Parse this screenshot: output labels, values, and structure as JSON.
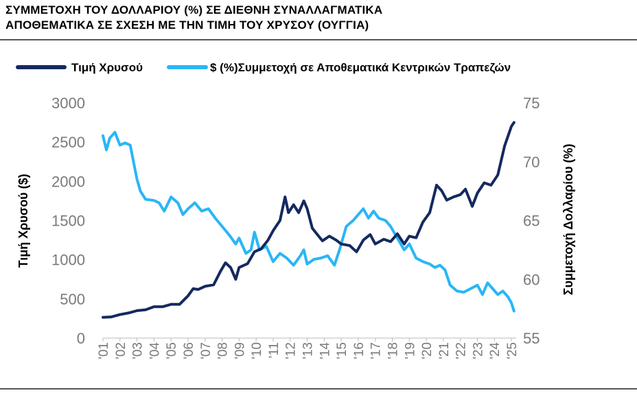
{
  "title": {
    "line1": "ΣΥΜΜΕΤΟΧΗ ΤΟΥ ΔΟΛΛΑΡΙΟΥ (%) ΣΕ ΔΙΕΘΝΗ ΣΥΝΑΛΛΑΓΜΑΤΙΚΑ",
    "line2": "ΑΠΟΘΕΜΑΤΙΚΑ ΣΕ ΣΧΕΣΗ ΜΕ ΤΗΝ ΤΙΜΗ ΤΟΥ ΧΡΥΣΟΥ (ΟΥΓΓΙΑ)"
  },
  "chart_data": {
    "type": "line",
    "ylabel": "Τιμή Χρυσού ($)",
    "y2label": "Συμμετοχή Δολλαρίου (%)",
    "ylim": [
      0,
      3000
    ],
    "y2lim": [
      55,
      75
    ],
    "yticks": [
      "0",
      "500",
      "1000",
      "1500",
      "2000",
      "2500",
      "3000"
    ],
    "y2ticks": [
      "55",
      "60",
      "65",
      "70",
      "75"
    ],
    "xticks": [
      "'01",
      "'02",
      "'03",
      "'04",
      "'05",
      "'06",
      "'07",
      "'08",
      "'09",
      "'10",
      "'11",
      "'12",
      "'13",
      "'14",
      "'15",
      "'16",
      "'17",
      "'18",
      "'19",
      "'20",
      "'21",
      "'22",
      "'23",
      "'24",
      "'25"
    ],
    "xlim": [
      2001,
      2025.2
    ],
    "legend_position": "top",
    "grid": false,
    "series": [
      {
        "name": "Τιμή Χρυσού",
        "color": "#14295f",
        "axis": "left",
        "x": [
          2001.0,
          2001.5,
          2002.0,
          2002.5,
          2003.0,
          2003.5,
          2004.0,
          2004.5,
          2005.0,
          2005.5,
          2006.0,
          2006.3,
          2006.6,
          2007.0,
          2007.5,
          2007.9,
          2008.2,
          2008.5,
          2008.8,
          2009.0,
          2009.5,
          2009.9,
          2010.3,
          2010.7,
          2011.0,
          2011.4,
          2011.7,
          2011.9,
          2012.2,
          2012.5,
          2012.8,
          2013.0,
          2013.3,
          2013.6,
          2013.9,
          2014.3,
          2014.7,
          2015.0,
          2015.5,
          2015.9,
          2016.3,
          2016.7,
          2017.0,
          2017.5,
          2017.9,
          2018.3,
          2018.7,
          2019.0,
          2019.4,
          2019.8,
          2020.2,
          2020.6,
          2020.9,
          2021.2,
          2021.6,
          2022.0,
          2022.3,
          2022.7,
          2023.0,
          2023.4,
          2023.8,
          2024.2,
          2024.6,
          2025.0,
          2025.15
        ],
        "values": [
          265,
          270,
          300,
          320,
          350,
          360,
          400,
          400,
          430,
          430,
          540,
          630,
          620,
          660,
          680,
          850,
          960,
          900,
          750,
          900,
          950,
          1100,
          1140,
          1250,
          1370,
          1500,
          1800,
          1600,
          1700,
          1600,
          1750,
          1650,
          1400,
          1320,
          1240,
          1300,
          1250,
          1200,
          1180,
          1100,
          1250,
          1320,
          1200,
          1260,
          1230,
          1330,
          1200,
          1300,
          1280,
          1480,
          1600,
          1950,
          1880,
          1760,
          1800,
          1830,
          1900,
          1680,
          1850,
          1980,
          1950,
          2080,
          2450,
          2700,
          2750
        ]
      },
      {
        "name": "$ (%)Συμμετοχή  σε Αποθεματικά Κεντρικών Τραπεζών",
        "color": "#29b6f6",
        "axis": "right",
        "x": [
          2001.0,
          2001.2,
          2001.4,
          2001.7,
          2002.0,
          2002.3,
          2002.6,
          2003.0,
          2003.2,
          2003.5,
          2004.0,
          2004.3,
          2004.6,
          2005.0,
          2005.4,
          2005.7,
          2006.0,
          2006.4,
          2006.8,
          2007.2,
          2007.6,
          2008.0,
          2008.4,
          2008.8,
          2009.0,
          2009.4,
          2009.7,
          2009.9,
          2010.2,
          2010.6,
          2011.0,
          2011.4,
          2011.8,
          2012.2,
          2012.6,
          2012.8,
          2013.0,
          2013.4,
          2013.8,
          2014.2,
          2014.6,
          2014.9,
          2015.3,
          2015.7,
          2016.0,
          2016.3,
          2016.6,
          2016.9,
          2017.2,
          2017.6,
          2017.9,
          2018.3,
          2018.7,
          2019.0,
          2019.4,
          2019.8,
          2020.2,
          2020.5,
          2020.8,
          2021.1,
          2021.4,
          2021.8,
          2022.2,
          2022.6,
          2023.0,
          2023.3,
          2023.6,
          2023.9,
          2024.2,
          2024.5,
          2024.8,
          2025.0,
          2025.15
        ],
        "values": [
          72.2,
          71.0,
          72.0,
          72.5,
          71.4,
          71.6,
          71.4,
          68.5,
          67.5,
          66.8,
          66.7,
          66.5,
          65.8,
          67.0,
          66.5,
          65.5,
          66.0,
          66.5,
          65.8,
          66.0,
          65.2,
          64.5,
          63.8,
          63.0,
          63.5,
          62.2,
          62.5,
          64.0,
          62.5,
          62.8,
          61.5,
          62.2,
          61.8,
          61.2,
          62.0,
          62.5,
          61.3,
          61.7,
          61.8,
          62.0,
          61.2,
          62.5,
          64.5,
          65.0,
          65.5,
          66.0,
          65.2,
          65.8,
          65.2,
          65.0,
          64.5,
          63.5,
          62.5,
          63.0,
          61.8,
          61.5,
          61.3,
          61.0,
          61.2,
          60.8,
          59.5,
          59.0,
          58.9,
          59.2,
          59.5,
          58.7,
          59.7,
          59.2,
          58.7,
          59.0,
          58.5,
          58.0,
          57.3
        ]
      }
    ]
  }
}
